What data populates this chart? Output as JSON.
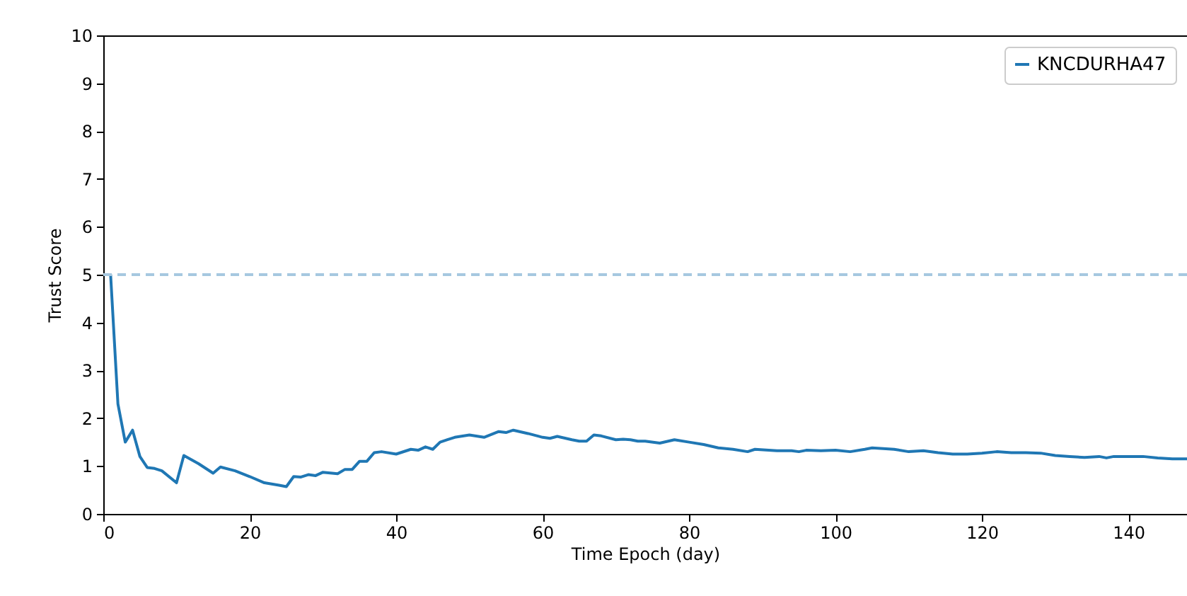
{
  "chart_data": {
    "type": "line",
    "xlabel": "Time Epoch (day)",
    "ylabel": "Trust Score",
    "xlim": [
      0,
      148
    ],
    "xticks": [
      0,
      20,
      40,
      60,
      80,
      100,
      120,
      140
    ],
    "ylim": [
      0,
      10
    ],
    "yticks": [
      0,
      1,
      2,
      3,
      4,
      5,
      6,
      7,
      8,
      9,
      10
    ],
    "grid": false,
    "legend": "top right",
    "marker": "none",
    "line_style": "solid",
    "ref_lines": [
      {
        "axis": "y",
        "value": 5,
        "color": "#a6c8e0",
        "line_style": "dashed"
      }
    ],
    "series": [
      {
        "name": "KNCDURHA47",
        "color": "#1f77b4",
        "x": [
          0,
          1,
          2,
          3,
          4,
          5,
          6,
          7,
          8,
          10,
          11,
          13,
          15,
          16,
          18,
          20,
          22,
          24,
          25,
          26,
          27,
          28,
          29,
          30,
          32,
          33,
          34,
          35,
          36,
          37,
          38,
          40,
          42,
          43,
          44,
          45,
          46,
          47,
          48,
          50,
          52,
          54,
          55,
          56,
          58,
          60,
          61,
          62,
          64,
          65,
          66,
          67,
          68,
          70,
          71,
          72,
          73,
          74,
          76,
          78,
          80,
          82,
          84,
          86,
          88,
          89,
          92,
          94,
          95,
          96,
          98,
          100,
          102,
          104,
          105,
          108,
          110,
          112,
          114,
          116,
          118,
          120,
          122,
          124,
          126,
          128,
          130,
          132,
          134,
          136,
          137,
          138,
          140,
          142,
          144,
          146,
          148
        ],
        "values": [
          5,
          5,
          2.3,
          1.5,
          1.75,
          1.2,
          0.97,
          0.95,
          0.9,
          0.65,
          1.22,
          1.05,
          0.85,
          0.98,
          0.9,
          0.78,
          0.65,
          0.6,
          0.57,
          0.78,
          0.77,
          0.82,
          0.8,
          0.87,
          0.84,
          0.93,
          0.93,
          1.1,
          1.1,
          1.28,
          1.3,
          1.25,
          1.35,
          1.33,
          1.4,
          1.35,
          1.5,
          1.55,
          1.6,
          1.65,
          1.6,
          1.72,
          1.7,
          1.75,
          1.68,
          1.6,
          1.58,
          1.62,
          1.55,
          1.52,
          1.52,
          1.65,
          1.63,
          1.55,
          1.56,
          1.55,
          1.52,
          1.52,
          1.48,
          1.55,
          1.5,
          1.45,
          1.38,
          1.35,
          1.3,
          1.35,
          1.32,
          1.32,
          1.3,
          1.33,
          1.32,
          1.33,
          1.3,
          1.35,
          1.38,
          1.35,
          1.3,
          1.32,
          1.28,
          1.25,
          1.25,
          1.27,
          1.3,
          1.28,
          1.28,
          1.27,
          1.22,
          1.2,
          1.18,
          1.2,
          1.17,
          1.2,
          1.2,
          1.2,
          1.17,
          1.15,
          1.15
        ]
      }
    ]
  }
}
